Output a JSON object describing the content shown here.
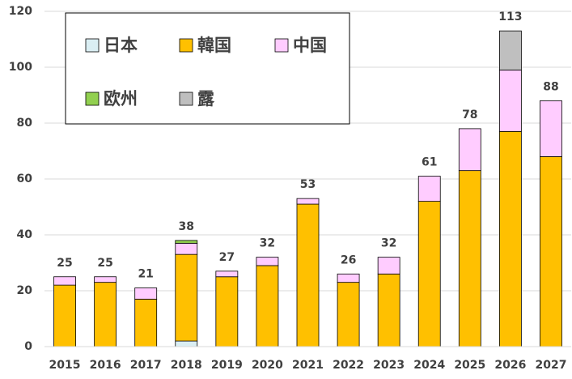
{
  "chart_data": {
    "type": "stacked_bar",
    "categories": [
      "2015",
      "2016",
      "2017",
      "2018",
      "2019",
      "2020",
      "2021",
      "2022",
      "2023",
      "2024",
      "2025",
      "2026",
      "2027"
    ],
    "series": [
      {
        "name": "日本",
        "color": "#daeef3",
        "values": [
          0,
          0,
          0,
          2,
          0,
          0,
          0,
          0,
          0,
          0,
          0,
          0,
          0
        ]
      },
      {
        "name": "韓国",
        "color": "#ffc000",
        "values": [
          22,
          23,
          17,
          31,
          25,
          29,
          51,
          23,
          26,
          52,
          63,
          77,
          68
        ]
      },
      {
        "name": "中国",
        "color": "#ffccff",
        "values": [
          3,
          2,
          4,
          4,
          2,
          3,
          2,
          3,
          6,
          9,
          15,
          22,
          20
        ]
      },
      {
        "name": "欧州",
        "color": "#92d050",
        "values": [
          0,
          0,
          0,
          1,
          0,
          0,
          0,
          0,
          0,
          0,
          0,
          0,
          0
        ]
      },
      {
        "name": "露",
        "color": "#bfbfbf",
        "values": [
          0,
          0,
          0,
          0,
          0,
          0,
          0,
          0,
          0,
          0,
          0,
          14,
          0
        ]
      }
    ],
    "totals": [
      25,
      25,
      21,
      38,
      27,
      32,
      53,
      26,
      32,
      61,
      78,
      113,
      88
    ],
    "ylim": [
      0,
      120
    ],
    "yticks": [
      0,
      20,
      40,
      60,
      80,
      100,
      120
    ],
    "grid": true
  }
}
